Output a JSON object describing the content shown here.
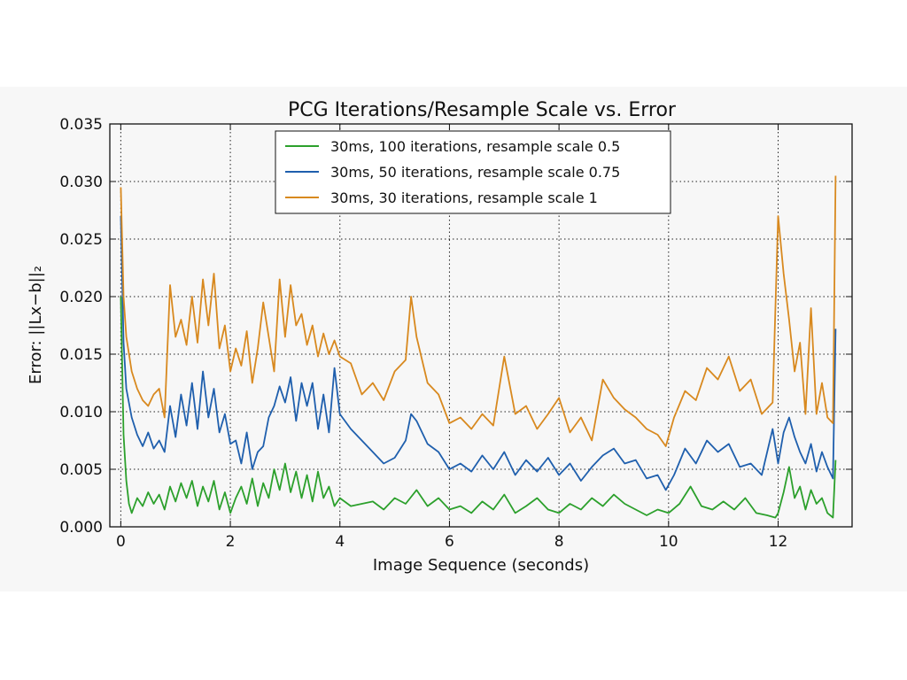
{
  "chart_data": {
    "type": "line",
    "title": "PCG Iterations/Resample Scale vs. Error",
    "xlabel": "Image Sequence (seconds)",
    "ylabel": "Error: ||Lx−b||₂",
    "xlim": [
      -0.2,
      13.35
    ],
    "ylim": [
      0.0,
      0.035
    ],
    "xticks": [
      0,
      2,
      4,
      6,
      8,
      10,
      12
    ],
    "yticks": [
      0.0,
      0.005,
      0.01,
      0.015,
      0.02,
      0.025,
      0.03,
      0.035
    ],
    "xtick_labels": [
      "0",
      "2",
      "4",
      "6",
      "8",
      "10",
      "12"
    ],
    "ytick_labels": [
      "0.000",
      "0.005",
      "0.010",
      "0.015",
      "0.020",
      "0.025",
      "0.030",
      "0.035"
    ],
    "grid": true,
    "grid_style": "dotted",
    "legend_position": "top-center",
    "series": [
      {
        "name": "30ms, 100 iterations, resample scale 0.5",
        "color": "#2ca02c",
        "x": [
          0.0,
          0.05,
          0.1,
          0.15,
          0.2,
          0.3,
          0.4,
          0.5,
          0.6,
          0.7,
          0.8,
          0.9,
          1.0,
          1.1,
          1.2,
          1.3,
          1.4,
          1.5,
          1.6,
          1.7,
          1.8,
          1.9,
          2.0,
          2.1,
          2.2,
          2.3,
          2.4,
          2.5,
          2.6,
          2.7,
          2.8,
          2.9,
          3.0,
          3.1,
          3.2,
          3.3,
          3.4,
          3.5,
          3.6,
          3.7,
          3.8,
          3.9,
          4.0,
          4.2,
          4.4,
          4.6,
          4.8,
          5.0,
          5.2,
          5.4,
          5.6,
          5.8,
          6.0,
          6.2,
          6.4,
          6.6,
          6.8,
          7.0,
          7.2,
          7.4,
          7.6,
          7.8,
          8.0,
          8.2,
          8.4,
          8.6,
          8.8,
          9.0,
          9.2,
          9.4,
          9.6,
          9.8,
          10.0,
          10.2,
          10.4,
          10.6,
          10.8,
          11.0,
          11.2,
          11.4,
          11.6,
          11.8,
          11.95,
          12.0,
          12.1,
          12.2,
          12.3,
          12.4,
          12.5,
          12.6,
          12.7,
          12.8,
          12.9,
          13.0,
          13.05
        ],
        "values": [
          0.02,
          0.008,
          0.004,
          0.002,
          0.0012,
          0.0025,
          0.0018,
          0.003,
          0.002,
          0.0028,
          0.0015,
          0.0035,
          0.0022,
          0.0038,
          0.0025,
          0.004,
          0.0018,
          0.0035,
          0.0022,
          0.004,
          0.0015,
          0.003,
          0.0012,
          0.0025,
          0.0035,
          0.002,
          0.0042,
          0.0018,
          0.0038,
          0.0025,
          0.005,
          0.0032,
          0.0055,
          0.003,
          0.0048,
          0.0025,
          0.0045,
          0.0022,
          0.0048,
          0.0025,
          0.0035,
          0.0018,
          0.0025,
          0.0018,
          0.002,
          0.0022,
          0.0015,
          0.0025,
          0.002,
          0.0032,
          0.0018,
          0.0025,
          0.0015,
          0.0018,
          0.0012,
          0.0022,
          0.0015,
          0.0028,
          0.0012,
          0.0018,
          0.0025,
          0.0015,
          0.0012,
          0.002,
          0.0015,
          0.0025,
          0.0018,
          0.0028,
          0.002,
          0.0015,
          0.001,
          0.0015,
          0.0012,
          0.002,
          0.0035,
          0.0018,
          0.0015,
          0.0022,
          0.0015,
          0.0025,
          0.0012,
          0.001,
          0.0008,
          0.0012,
          0.003,
          0.0052,
          0.0025,
          0.0035,
          0.0015,
          0.0032,
          0.002,
          0.0025,
          0.0012,
          0.0008,
          0.0058
        ]
      },
      {
        "name": "30ms, 50 iterations, resample scale 0.75",
        "color": "#1f5fad",
        "x": [
          0.0,
          0.05,
          0.1,
          0.2,
          0.3,
          0.4,
          0.5,
          0.6,
          0.7,
          0.8,
          0.9,
          1.0,
          1.1,
          1.2,
          1.3,
          1.4,
          1.5,
          1.6,
          1.7,
          1.8,
          1.9,
          2.0,
          2.1,
          2.2,
          2.3,
          2.4,
          2.5,
          2.6,
          2.7,
          2.8,
          2.9,
          3.0,
          3.1,
          3.2,
          3.3,
          3.4,
          3.5,
          3.6,
          3.7,
          3.8,
          3.9,
          4.0,
          4.2,
          4.4,
          4.6,
          4.8,
          5.0,
          5.2,
          5.3,
          5.4,
          5.6,
          5.8,
          6.0,
          6.2,
          6.4,
          6.6,
          6.8,
          7.0,
          7.2,
          7.4,
          7.6,
          7.8,
          8.0,
          8.2,
          8.4,
          8.6,
          8.8,
          9.0,
          9.2,
          9.4,
          9.6,
          9.8,
          9.95,
          10.1,
          10.3,
          10.5,
          10.7,
          10.9,
          11.1,
          11.3,
          11.5,
          11.7,
          11.9,
          12.0,
          12.1,
          12.2,
          12.3,
          12.4,
          12.5,
          12.6,
          12.7,
          12.8,
          12.9,
          13.0,
          13.05
        ],
        "values": [
          0.027,
          0.016,
          0.012,
          0.0095,
          0.008,
          0.007,
          0.0082,
          0.0068,
          0.0075,
          0.0065,
          0.0105,
          0.0078,
          0.0115,
          0.0088,
          0.0125,
          0.0085,
          0.0135,
          0.0095,
          0.012,
          0.0082,
          0.0098,
          0.0072,
          0.0075,
          0.0055,
          0.0082,
          0.005,
          0.0065,
          0.007,
          0.0095,
          0.0105,
          0.0122,
          0.0108,
          0.013,
          0.0092,
          0.0125,
          0.0105,
          0.0125,
          0.0085,
          0.0115,
          0.0082,
          0.0138,
          0.0098,
          0.0085,
          0.0075,
          0.0065,
          0.0055,
          0.006,
          0.0075,
          0.0098,
          0.0092,
          0.0072,
          0.0065,
          0.005,
          0.0055,
          0.0048,
          0.0062,
          0.005,
          0.0065,
          0.0045,
          0.0058,
          0.0048,
          0.006,
          0.0045,
          0.0055,
          0.004,
          0.0052,
          0.0062,
          0.0068,
          0.0055,
          0.0058,
          0.0042,
          0.0045,
          0.0032,
          0.0045,
          0.0068,
          0.0055,
          0.0075,
          0.0065,
          0.0072,
          0.0052,
          0.0055,
          0.0045,
          0.0085,
          0.0055,
          0.0082,
          0.0095,
          0.0078,
          0.0065,
          0.0055,
          0.0072,
          0.0048,
          0.0065,
          0.0052,
          0.0042,
          0.0172
        ]
      },
      {
        "name": "30ms, 30 iterations, resample scale 1",
        "color": "#d8891f",
        "x": [
          0.0,
          0.05,
          0.1,
          0.2,
          0.3,
          0.4,
          0.5,
          0.6,
          0.7,
          0.8,
          0.9,
          1.0,
          1.1,
          1.2,
          1.3,
          1.4,
          1.5,
          1.6,
          1.7,
          1.8,
          1.9,
          2.0,
          2.1,
          2.2,
          2.3,
          2.4,
          2.5,
          2.6,
          2.7,
          2.8,
          2.9,
          3.0,
          3.1,
          3.2,
          3.3,
          3.4,
          3.5,
          3.6,
          3.7,
          3.8,
          3.9,
          4.0,
          4.2,
          4.4,
          4.6,
          4.8,
          5.0,
          5.2,
          5.3,
          5.4,
          5.6,
          5.8,
          6.0,
          6.2,
          6.4,
          6.6,
          6.8,
          7.0,
          7.2,
          7.4,
          7.6,
          7.8,
          8.0,
          8.2,
          8.4,
          8.6,
          8.8,
          9.0,
          9.2,
          9.4,
          9.6,
          9.8,
          9.95,
          10.1,
          10.3,
          10.5,
          10.7,
          10.9,
          11.1,
          11.3,
          11.5,
          11.7,
          11.9,
          12.0,
          12.1,
          12.2,
          12.3,
          12.4,
          12.5,
          12.6,
          12.7,
          12.8,
          12.9,
          13.0,
          13.05
        ],
        "values": [
          0.0295,
          0.02,
          0.0165,
          0.0135,
          0.012,
          0.011,
          0.0105,
          0.0115,
          0.012,
          0.0095,
          0.021,
          0.0165,
          0.018,
          0.0158,
          0.02,
          0.016,
          0.0215,
          0.0175,
          0.022,
          0.0155,
          0.0175,
          0.0135,
          0.0155,
          0.014,
          0.017,
          0.0125,
          0.0155,
          0.0195,
          0.0165,
          0.0135,
          0.0215,
          0.0165,
          0.021,
          0.0175,
          0.0185,
          0.0158,
          0.0175,
          0.0148,
          0.0168,
          0.015,
          0.0162,
          0.0148,
          0.0142,
          0.0115,
          0.0125,
          0.011,
          0.0135,
          0.0145,
          0.02,
          0.0165,
          0.0125,
          0.0115,
          0.009,
          0.0095,
          0.0085,
          0.0098,
          0.0088,
          0.0148,
          0.0098,
          0.0105,
          0.0085,
          0.0098,
          0.0112,
          0.0082,
          0.0095,
          0.0075,
          0.0128,
          0.0112,
          0.0102,
          0.0095,
          0.0085,
          0.008,
          0.007,
          0.0095,
          0.0118,
          0.011,
          0.0138,
          0.0128,
          0.0148,
          0.0118,
          0.0128,
          0.0098,
          0.0108,
          0.027,
          0.022,
          0.018,
          0.0135,
          0.016,
          0.0098,
          0.019,
          0.0098,
          0.0125,
          0.0095,
          0.009,
          0.0305
        ]
      }
    ]
  }
}
